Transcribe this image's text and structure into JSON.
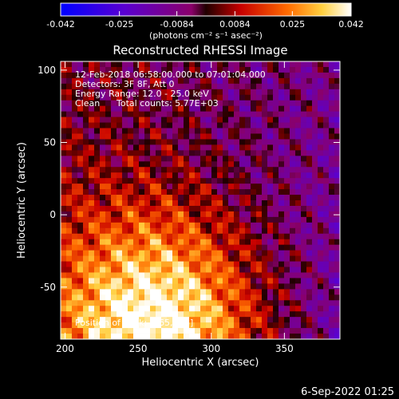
{
  "chart_data": {
    "type": "heatmap",
    "title": "Reconstructed RHESSI Image",
    "xlabel": "Heliocentric X (arcsec)",
    "ylabel": "Heliocentric Y (arcsec)",
    "xlim": [
      197,
      388
    ],
    "ylim": [
      -86,
      106
    ],
    "xticks": [
      200,
      250,
      300,
      350
    ],
    "yticks": [
      100,
      50,
      0,
      -50
    ],
    "colorbar": {
      "ticks": [
        "-0.042",
        "-0.025",
        "-0.0084",
        "0.0084",
        "0.025",
        "0.042"
      ],
      "range": [
        -0.042,
        0.042
      ],
      "unit_label": "(photons cm⁻² s⁻¹ asec⁻²)"
    },
    "annotations": [
      "12-Feb-2018 06:58:00.000 to 07:01:04.000",
      "Detectors: 3F 8F, Att 0",
      "Energy Range: 12.0 - 25.0 keV",
      "Clean",
      "Total counts: 5.77E+03",
      "Position of Peak: [265, -78]"
    ],
    "peak": {
      "x": 265,
      "y": -78
    },
    "timestamp": "6-Sep-2022 01:25"
  }
}
